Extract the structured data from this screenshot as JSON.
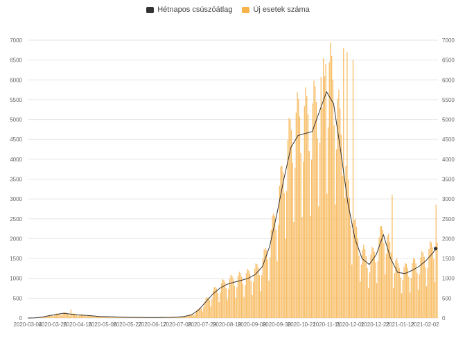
{
  "legend": {
    "avg_label": "Hétnapos csúszóátlag",
    "cases_label": "Új esetek száma"
  },
  "colors": {
    "avg": "#333333",
    "cases": "#f7b24a",
    "grid": "#e6e6e6"
  },
  "chart_data": {
    "type": "bar",
    "ylim": [
      0,
      7000
    ],
    "yticks": [
      0,
      500,
      1000,
      1500,
      2000,
      2500,
      3000,
      3500,
      4000,
      4500,
      5000,
      5500,
      6000,
      6500,
      7000
    ],
    "xticks": [
      "2020-03-04",
      "2020-03-25",
      "2020-04-15",
      "2020-05-06",
      "2020-05-27",
      "2020-06-17",
      "2020-07-08",
      "2020-07-29",
      "2020-08-19",
      "2020-09-09",
      "2020-09-30",
      "2020-10-21",
      "2020-11-11",
      "2020-12-01",
      "2020-12-22",
      "2021-01-12",
      "2021-02-02"
    ],
    "grid": true,
    "legend_position": "top-center",
    "series": [
      {
        "name": "Új esetek száma",
        "kind": "bar",
        "weekly_avg": [
          0,
          5,
          25,
          60,
          90,
          120,
          100,
          80,
          70,
          55,
          40,
          35,
          30,
          25,
          20,
          18,
          15,
          12,
          12,
          15,
          18,
          25,
          40,
          80,
          200,
          400,
          600,
          750,
          850,
          900,
          950,
          1000,
          1100,
          1300,
          1800,
          2600,
          3500,
          4300,
          4600,
          4650,
          4700,
          5200,
          5700,
          5400,
          4200,
          2900,
          2000,
          1500,
          1350,
          1600,
          2100,
          1500,
          1150,
          1120,
          1200,
          1300,
          1450,
          1650
        ],
        "spikes": [
          {
            "date": "2020-04-09",
            "value": 220
          },
          {
            "date": "2020-11-07",
            "value": 5300
          },
          {
            "date": "2020-11-10",
            "value": 6400
          },
          {
            "date": "2020-11-25",
            "value": 6800
          },
          {
            "date": "2020-11-28",
            "value": 6700
          },
          {
            "date": "2020-12-03",
            "value": 6500
          },
          {
            "date": "2021-01-05",
            "value": 3100
          },
          {
            "date": "2021-02-11",
            "value": 2850
          }
        ]
      },
      {
        "name": "Hétnapos csúszóátlag",
        "kind": "line",
        "x_start": "2020-03-04",
        "x_step_days": 6,
        "values": [
          0,
          5,
          25,
          60,
          90,
          120,
          100,
          80,
          70,
          55,
          40,
          35,
          30,
          25,
          20,
          18,
          15,
          12,
          12,
          15,
          18,
          25,
          40,
          80,
          200,
          400,
          600,
          750,
          850,
          900,
          950,
          1000,
          1100,
          1300,
          1800,
          2600,
          3500,
          4300,
          4600,
          4650,
          4700,
          5200,
          5700,
          5400,
          4200,
          2900,
          2000,
          1500,
          1350,
          1600,
          2100,
          1500,
          1150,
          1120,
          1200,
          1300,
          1450,
          1650
        ],
        "last_point": {
          "date": "2021-02-11",
          "value": 1750
        }
      }
    ]
  }
}
